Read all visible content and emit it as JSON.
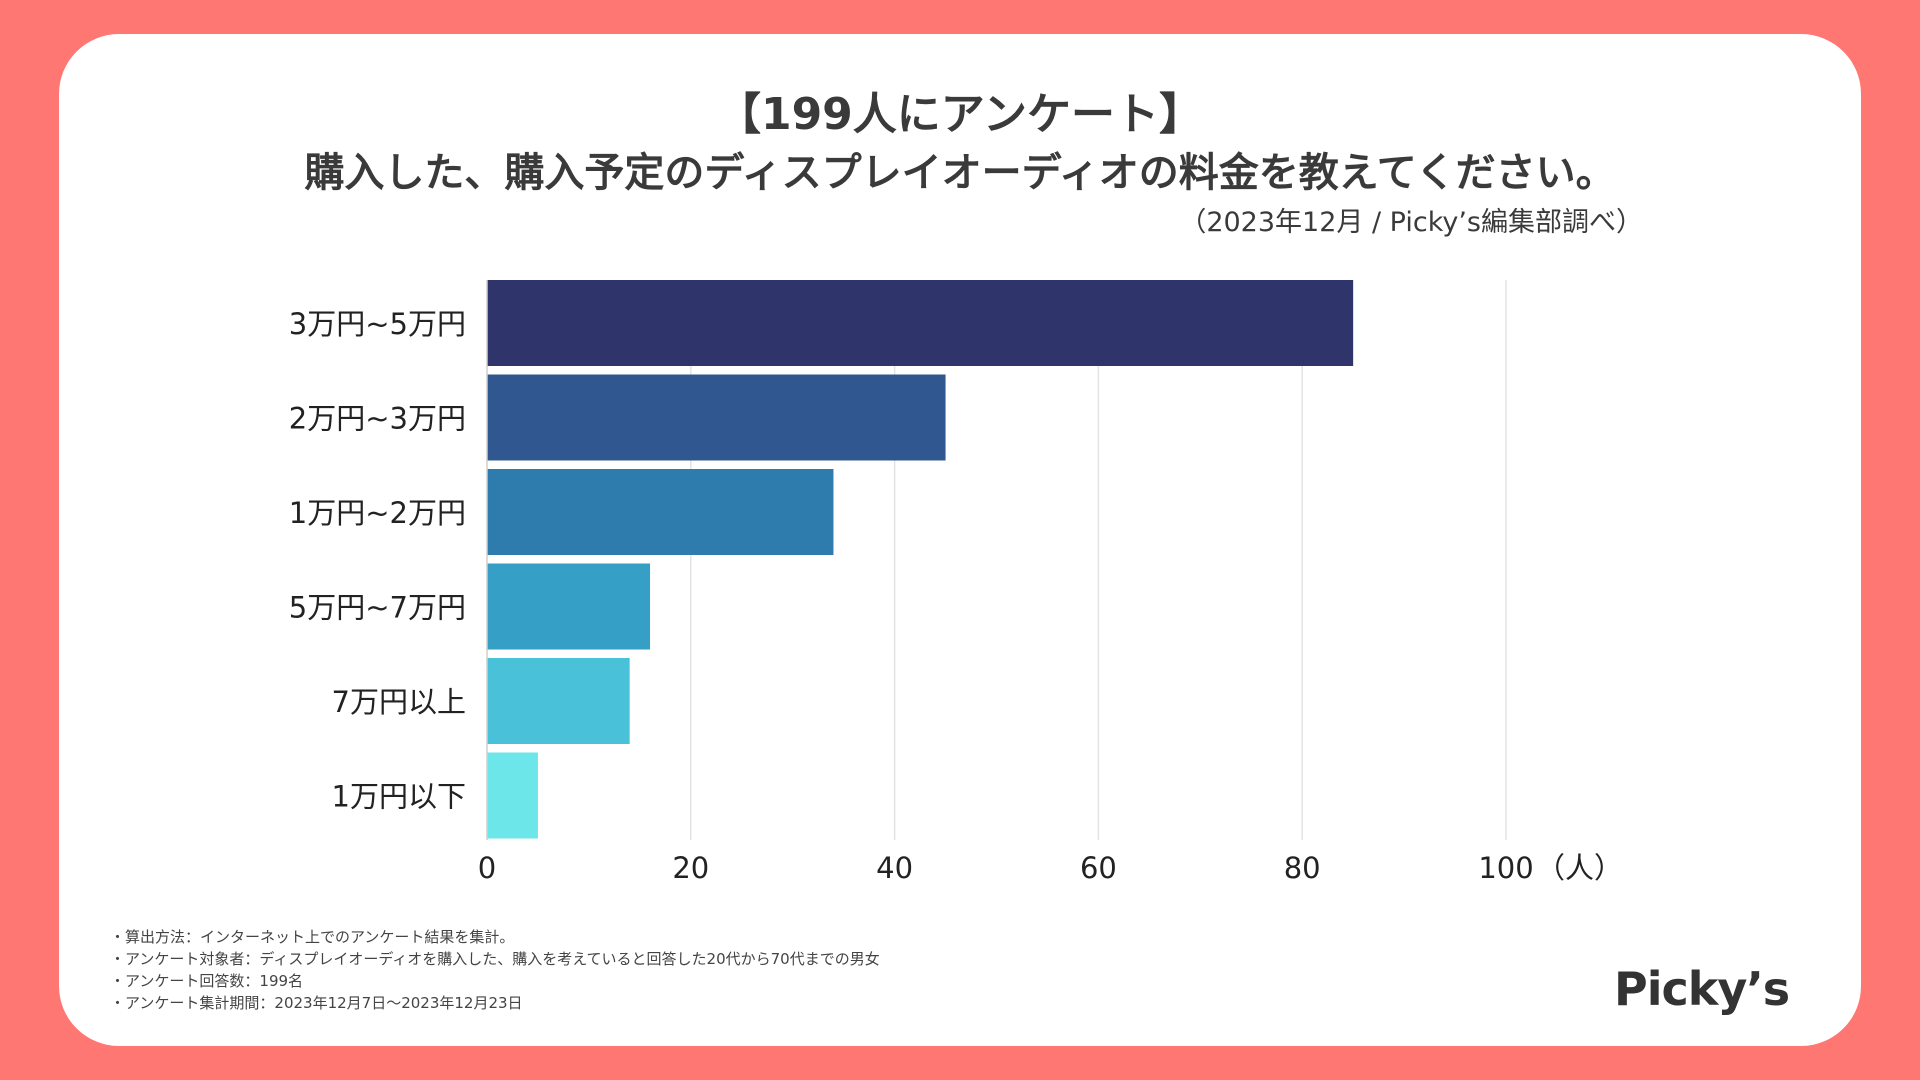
{
  "title": {
    "line1": "【199人にアンケート】",
    "line2": "購入した、購入予定のディスプレイオーディオの料金を教えてください。"
  },
  "source": "（2023年12月 / Picky’s編集部調べ）",
  "chart_data": {
    "type": "bar",
    "orientation": "horizontal",
    "categories": [
      "3万円~5万円",
      "2万円~3万円",
      "1万円~2万円",
      "5万円~7万円",
      "7万円以上",
      "1万円以下"
    ],
    "values": [
      85,
      45,
      34,
      16,
      14,
      5
    ],
    "colors": [
      "#2f346b",
      "#30578f",
      "#2e7cad",
      "#359fc6",
      "#49c2d9",
      "#6de6e9"
    ],
    "xlim": [
      0,
      100
    ],
    "xticks": [
      0,
      20,
      40,
      60,
      80,
      100
    ],
    "xunit": "（人）",
    "grid": true
  },
  "notes": [
    "・算出方法：インターネット上でのアンケート結果を集計。",
    "・アンケート対象者：ディスプレイオーディオを購入した、購入を考えていると回答した20代から70代までの男女",
    "・アンケート回答数：199名",
    "・アンケート集計期間：2023年12月7日〜2023年12月23日"
  ],
  "logo": "Picky’s",
  "colors": {
    "background": "#ff7773",
    "card": "#ffffff",
    "grid": "#e3e3e3",
    "text": "#333333"
  }
}
